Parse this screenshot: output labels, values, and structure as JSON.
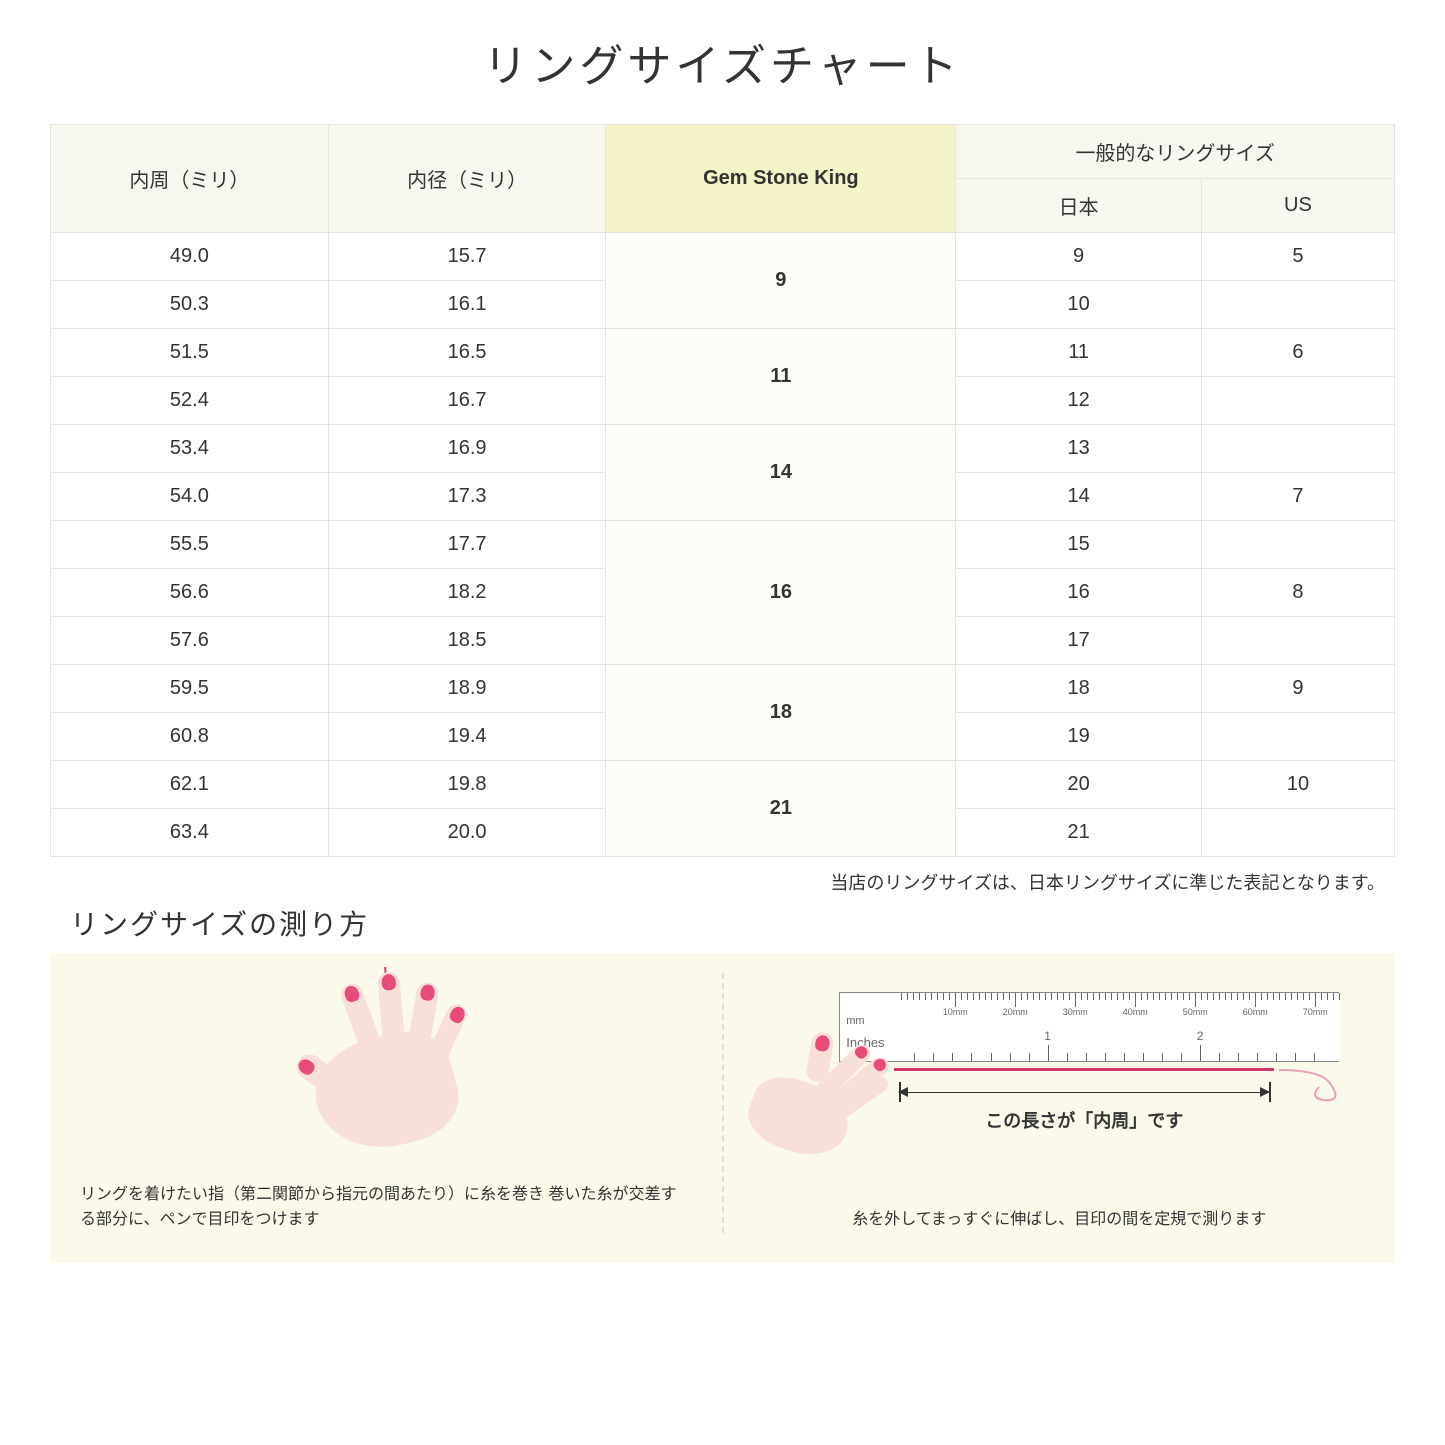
{
  "title": "リングサイズチャート",
  "headers": {
    "col1": "内周（ミリ）",
    "col2": "内径（ミリ）",
    "col3": "Gem Stone King",
    "col4_group": "一般的なリングサイズ",
    "col4a": "日本",
    "col4b": "US"
  },
  "groups": [
    {
      "gsk": "9",
      "rows": [
        {
          "c": "49.0",
          "d": "15.7",
          "jp": "9",
          "us": "5"
        },
        {
          "c": "50.3",
          "d": "16.1",
          "jp": "10",
          "us": ""
        }
      ]
    },
    {
      "gsk": "11",
      "rows": [
        {
          "c": "51.5",
          "d": "16.5",
          "jp": "11",
          "us": "6"
        },
        {
          "c": "52.4",
          "d": "16.7",
          "jp": "12",
          "us": ""
        }
      ]
    },
    {
      "gsk": "14",
      "rows": [
        {
          "c": "53.4",
          "d": "16.9",
          "jp": "13",
          "us": ""
        },
        {
          "c": "54.0",
          "d": "17.3",
          "jp": "14",
          "us": "7"
        }
      ]
    },
    {
      "gsk": "16",
      "rows": [
        {
          "c": "55.5",
          "d": "17.7",
          "jp": "15",
          "us": ""
        },
        {
          "c": "56.6",
          "d": "18.2",
          "jp": "16",
          "us": "8"
        },
        {
          "c": "57.6",
          "d": "18.5",
          "jp": "17",
          "us": ""
        }
      ]
    },
    {
      "gsk": "18",
      "rows": [
        {
          "c": "59.5",
          "d": "18.9",
          "jp": "18",
          "us": "9"
        },
        {
          "c": "60.8",
          "d": "19.4",
          "jp": "19",
          "us": ""
        }
      ]
    },
    {
      "gsk": "21",
      "rows": [
        {
          "c": "62.1",
          "d": "19.8",
          "jp": "20",
          "us": "10"
        },
        {
          "c": "63.4",
          "d": "20.0",
          "jp": "21",
          "us": ""
        }
      ]
    }
  ],
  "note": "当店のリングサイズは、日本リングサイズに準じた表記となります。",
  "subtitle": "リングサイズの測り方",
  "instruction1": "リングを着けたい指（第二関節から指元の間あたり）に糸を巻き\n巻いた糸が交差する部分に、ペンで目印をつけます",
  "instruction2": "糸を外してまっすぐに伸ばし、目印の間を定規で測ります",
  "arrow_label": "この長さが「内周」です",
  "ruler": {
    "mm_unit": "mm",
    "in_unit": "Inches",
    "mm_labels": [
      "10mm",
      "20mm",
      "30mm",
      "40mm",
      "50mm",
      "60mm",
      "70mm"
    ],
    "in_labels": [
      "1",
      "2"
    ]
  },
  "colors": {
    "header_bg": "#f7f7f0",
    "highlight_bg": "#f5f3c8",
    "border": "#e5e5e0",
    "instruction_bg": "#fbf9ea",
    "hand": "#f8e0d8",
    "nail": "#e84a7a",
    "thread": "#d4356a"
  }
}
